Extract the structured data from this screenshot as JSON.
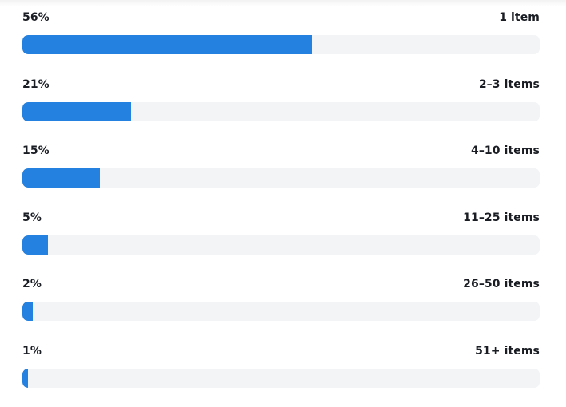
{
  "chart_data": {
    "type": "bar",
    "orientation": "horizontal",
    "categories": [
      "1 item",
      "2–3 items",
      "4–10 items",
      "11–25 items",
      "26–50 items",
      "51+ items"
    ],
    "values": [
      56,
      21,
      15,
      5,
      2,
      1
    ],
    "value_labels": [
      "56%",
      "21%",
      "15%",
      "5%",
      "2%",
      "1%"
    ],
    "xlim": [
      0,
      100
    ],
    "grid": false,
    "bar_color": "#2481e0",
    "track_color": "#f3f4f6"
  }
}
